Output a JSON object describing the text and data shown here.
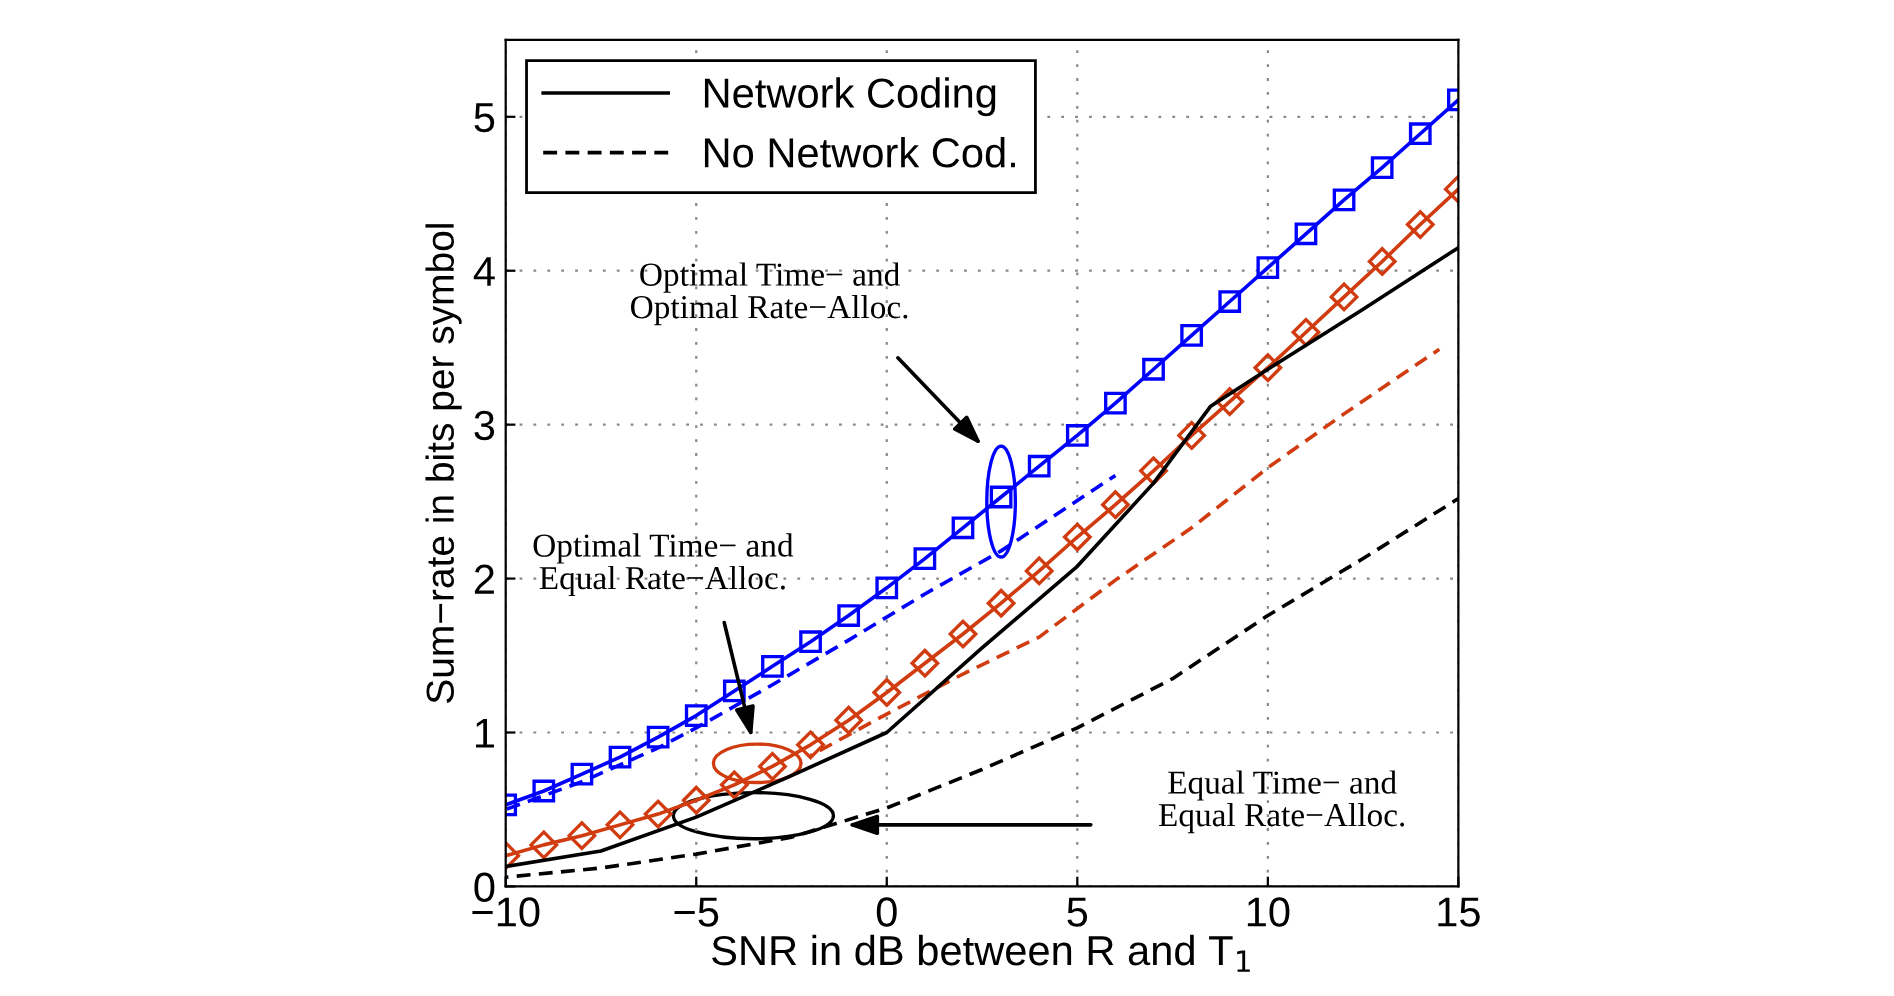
{
  "chart_data": {
    "type": "line",
    "xlabel": "SNR in dB between R and T$_{1}$",
    "ylabel": "Sum−rate in bits per symbol",
    "xlim": [
      -10,
      15
    ],
    "ylim": [
      0,
      5.5
    ],
    "xticks": [
      {
        "value": -10,
        "label": "−10"
      },
      {
        "value": -5,
        "label": "−5"
      },
      0,
      5,
      10,
      15
    ],
    "yticks": [
      0,
      1,
      2,
      3,
      4,
      5
    ],
    "grid": true,
    "legend": "top left",
    "series": [
      {
        "color": "#0000ff",
        "marker": "square",
        "line_style": "solid",
        "x": [
          -10,
          -9,
          -8,
          -7,
          -6,
          -5,
          -4,
          -3,
          -2,
          -1,
          0,
          1,
          2,
          3,
          4,
          5,
          6,
          7,
          8,
          9,
          10,
          11,
          12,
          13,
          14,
          15
        ],
        "values": [
          0.53,
          0.62,
          0.73,
          0.84,
          0.97,
          1.11,
          1.27,
          1.43,
          1.59,
          1.76,
          1.94,
          2.13,
          2.33,
          2.53,
          2.73,
          2.93,
          3.14,
          3.36,
          3.58,
          3.8,
          4.02,
          4.24,
          4.46,
          4.67,
          4.89,
          5.11
        ]
      },
      {
        "color": "#0000ff",
        "marker": "none",
        "line_style": "dashed",
        "x": [
          -10,
          -8,
          -6,
          -5,
          -3,
          -1,
          1,
          3,
          6
        ],
        "values": [
          0.5,
          0.68,
          0.9,
          1.03,
          1.31,
          1.6,
          1.9,
          2.18,
          2.67
        ]
      },
      {
        "color": "#d03c10",
        "marker": "diamond",
        "line_style": "solid",
        "x": [
          -10,
          -9,
          -8,
          -7,
          -6,
          -5,
          -4,
          -3,
          -2,
          -1,
          0,
          1,
          2,
          3,
          4,
          5,
          6,
          7,
          8,
          9,
          10,
          11,
          12,
          13,
          14,
          15
        ],
        "values": [
          0.2,
          0.27,
          0.33,
          0.4,
          0.47,
          0.56,
          0.66,
          0.78,
          0.92,
          1.08,
          1.26,
          1.45,
          1.64,
          1.84,
          2.05,
          2.27,
          2.48,
          2.7,
          2.93,
          3.15,
          3.37,
          3.6,
          3.83,
          4.06,
          4.3,
          4.53
        ]
      },
      {
        "color": "#d03c10",
        "marker": "none",
        "line_style": "dashed",
        "x": [
          -2,
          0,
          2,
          4,
          6,
          8,
          10,
          12,
          14.5
        ],
        "values": [
          0.85,
          1.12,
          1.38,
          1.62,
          1.99,
          2.33,
          2.72,
          3.07,
          3.49
        ]
      },
      {
        "name": "Network Coding",
        "color": "#000000",
        "marker": "none",
        "line_style": "solid",
        "x": [
          -10,
          -7.5,
          -5,
          -2.5,
          0,
          2.5,
          5,
          7,
          8.5,
          10,
          12.5,
          15
        ],
        "values": [
          0.13,
          0.23,
          0.45,
          0.72,
          1.0,
          1.55,
          2.08,
          2.62,
          3.12,
          3.36,
          3.75,
          4.15
        ]
      },
      {
        "name": "No Network Cod.",
        "color": "#000000",
        "marker": "none",
        "line_style": "dashed",
        "x": [
          -10,
          -7.5,
          -5,
          -2.5,
          0,
          2.5,
          5,
          7.5,
          10,
          12.5,
          15
        ],
        "values": [
          0.06,
          0.12,
          0.21,
          0.32,
          0.51,
          0.76,
          1.03,
          1.35,
          1.76,
          2.13,
          2.52
        ]
      }
    ],
    "annotations": [
      "Optimal Time− and\nOptimal Rate−Alloc.",
      "Optimal Time− and\nEqual Rate−Alloc.",
      "Equal Time− and\nEqual Rate−Alloc."
    ]
  }
}
